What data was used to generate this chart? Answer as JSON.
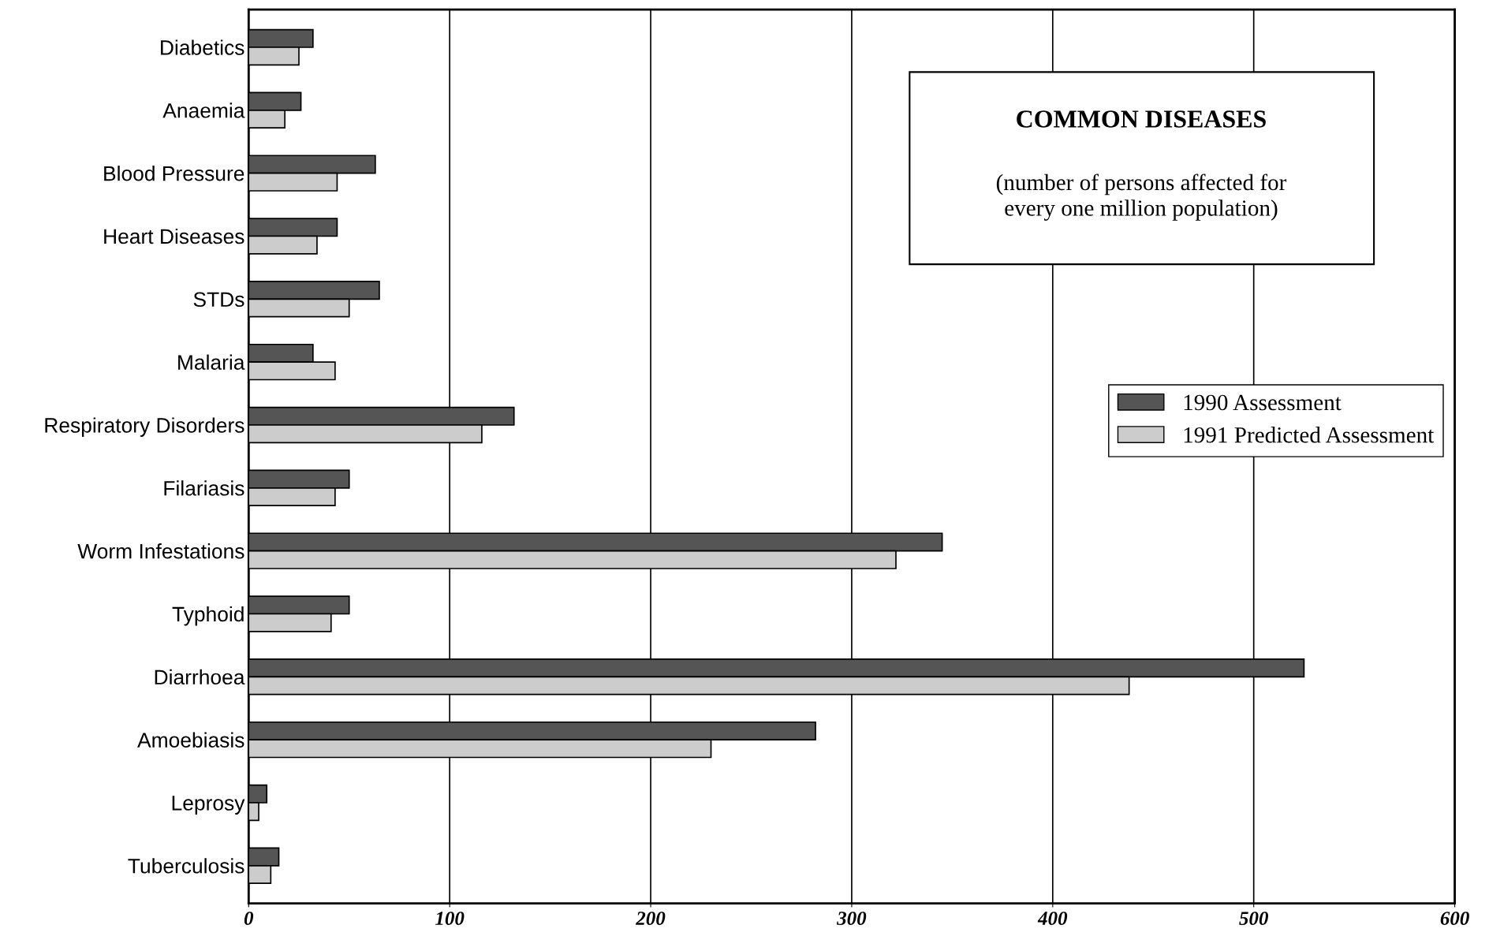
{
  "chart_data": {
    "type": "bar",
    "orientation": "horizontal",
    "title": "COMMON DISEASES",
    "subtitle": "(number of persons affected for\nevery one million population)",
    "categories": [
      "Diabetics",
      "Anaemia",
      "Blood Pressure",
      "Heart Diseases",
      "STDs",
      "Malaria",
      "Respiratory Disorders",
      "Filariasis",
      "Worm Infestations",
      "Typhoid",
      "Diarrhoea",
      "Amoebiasis",
      "Leprosy",
      "Tuberculosis"
    ],
    "series": [
      {
        "name": "1990 Assessment",
        "color": "#555555",
        "values": [
          32,
          26,
          63,
          44,
          65,
          32,
          132,
          50,
          345,
          50,
          525,
          282,
          9,
          15
        ]
      },
      {
        "name": "1991 Predicted Assessment",
        "color": "#cccccc",
        "values": [
          25,
          18,
          44,
          34,
          50,
          43,
          116,
          43,
          322,
          41,
          438,
          230,
          5,
          11
        ]
      }
    ],
    "xlim": [
      0,
      600
    ],
    "xticks": [
      0,
      100,
      200,
      300,
      400,
      500,
      600
    ],
    "grid": "x",
    "legend": "right"
  }
}
